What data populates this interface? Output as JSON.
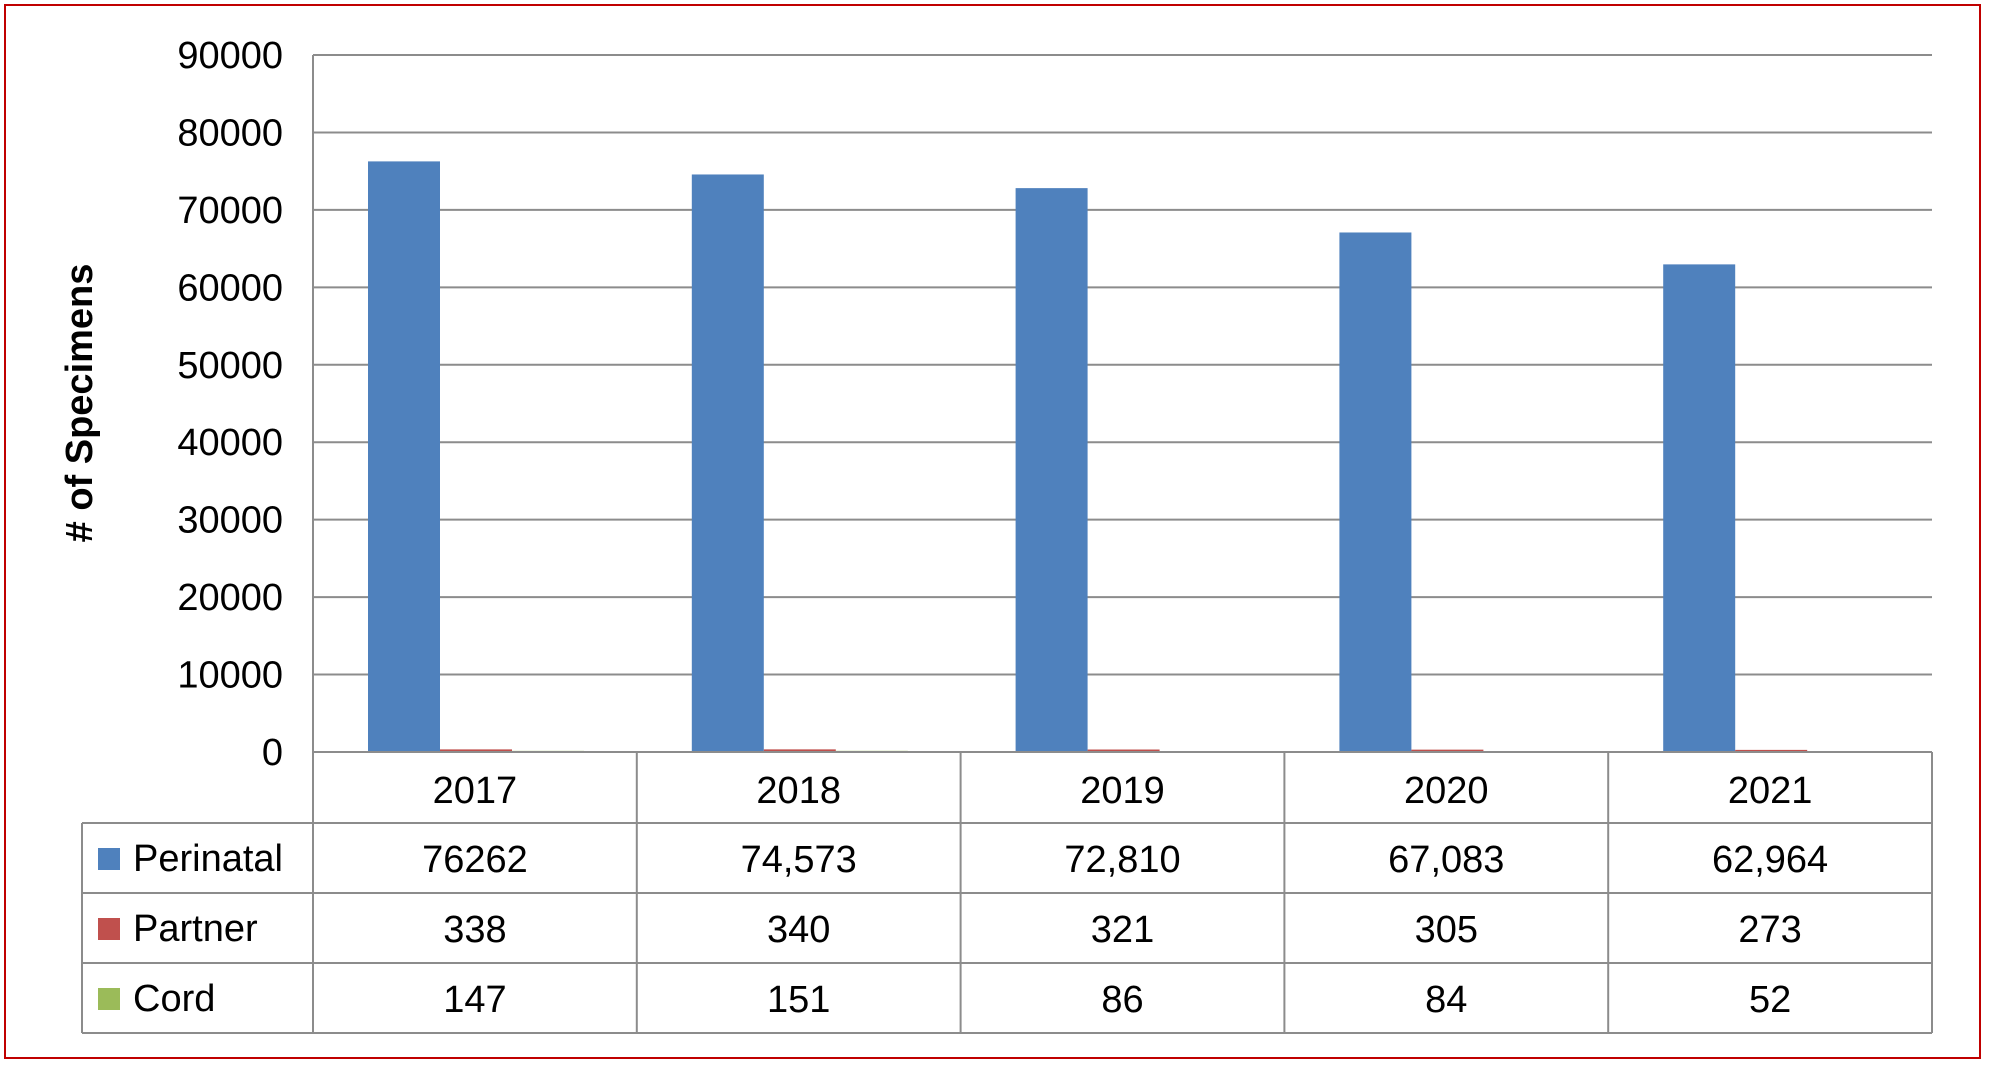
{
  "chart_data": {
    "type": "bar",
    "ylabel": "# of Specimens",
    "ylim": [
      0,
      90000
    ],
    "yticks": [
      "0",
      "10000",
      "20000",
      "30000",
      "40000",
      "50000",
      "60000",
      "70000",
      "80000",
      "90000"
    ],
    "categories": [
      "2017",
      "2018",
      "2019",
      "2020",
      "2021"
    ],
    "grid": true,
    "legend": "data-table",
    "series": [
      {
        "name": "Perinatal",
        "color": "#4f81bd",
        "values": [
          76262,
          74573,
          72810,
          67083,
          62964
        ],
        "labels": [
          "76262",
          "74,573",
          "72,810",
          "67,083",
          "62,964"
        ]
      },
      {
        "name": "Partner",
        "color": "#c0504d",
        "values": [
          338,
          340,
          321,
          305,
          273
        ],
        "labels": [
          "338",
          "340",
          "321",
          "305",
          "273"
        ]
      },
      {
        "name": "Cord",
        "color": "#9bbb59",
        "values": [
          147,
          151,
          86,
          84,
          52
        ],
        "labels": [
          "147",
          "151",
          "86",
          "84",
          "52"
        ]
      }
    ]
  }
}
